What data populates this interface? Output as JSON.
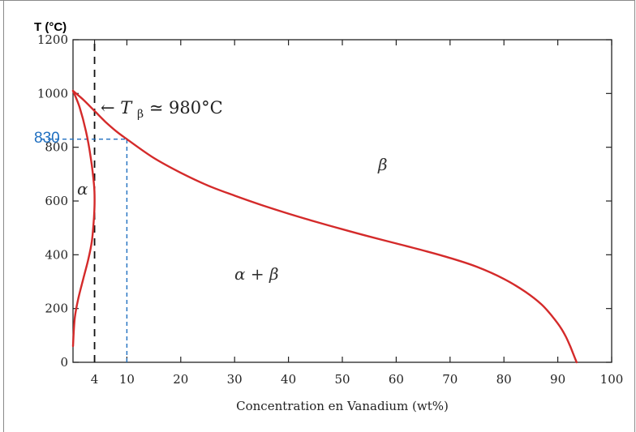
{
  "chart_data": {
    "type": "line",
    "ylabel": "T (°C)",
    "xlabel": "Concentration en Vanadium (wt%)",
    "xlim": [
      0,
      100
    ],
    "ylim": [
      0,
      1200
    ],
    "x_ticks": [
      {
        "value": 4,
        "label": "4"
      },
      {
        "value": 10,
        "label": "10"
      },
      {
        "value": 20,
        "label": "20"
      },
      {
        "value": 30,
        "label": "30"
      },
      {
        "value": 40,
        "label": "40"
      },
      {
        "value": 50,
        "label": "50"
      },
      {
        "value": 60,
        "label": "60"
      },
      {
        "value": 70,
        "label": "70"
      },
      {
        "value": 80,
        "label": "80"
      },
      {
        "value": 90,
        "label": "90"
      },
      {
        "value": 100,
        "label": "100"
      }
    ],
    "y_ticks": [
      {
        "value": 0,
        "label": "0"
      },
      {
        "value": 200,
        "label": "200"
      },
      {
        "value": 400,
        "label": "400"
      },
      {
        "value": 600,
        "label": "600"
      },
      {
        "value": 800,
        "label": "800"
      },
      {
        "value": 1000,
        "label": "1000"
      },
      {
        "value": 1200,
        "label": "1200"
      }
    ],
    "series": [
      {
        "color": "#d42a2a",
        "x": [
          0,
          2,
          4,
          6,
          8,
          10,
          15,
          20,
          25,
          30,
          35,
          40,
          45,
          50,
          55,
          60,
          65,
          70,
          75,
          80,
          84,
          87,
          89,
          90.5,
          91.5,
          92.3,
          92.8,
          93.2,
          93.5
        ],
        "y": [
          1010,
          975,
          935,
          895,
          860,
          830,
          760,
          705,
          658,
          620,
          585,
          553,
          523,
          495,
          468,
          442,
          416,
          388,
          355,
          310,
          262,
          215,
          170,
          130,
          95,
          60,
          35,
          15,
          0
        ]
      },
      {
        "color": "#d42a2a",
        "x": [
          0,
          1.2,
          2.4,
          3.3,
          3.9,
          4.0,
          3.9,
          3.5,
          2.8,
          1.9,
          0.9,
          0.3,
          0
        ],
        "y": [
          1010,
          950,
          860,
          760,
          660,
          600,
          540,
          450,
          380,
          310,
          230,
          160,
          60
        ]
      }
    ],
    "reference_lines": [
      {
        "orientation": "vertical",
        "x": 4,
        "style": "dashed",
        "color": "#111111"
      },
      {
        "orientation": "vertical",
        "x": 10,
        "y_from": 0,
        "y_to": 830,
        "style": "dashed",
        "color": "#1f6fc0"
      },
      {
        "orientation": "horizontal",
        "y": 830,
        "x_from": 0,
        "x_to": 10,
        "style": "dashed",
        "color": "#1f6fc0"
      }
    ],
    "annotations": {
      "t830": "830",
      "tbeta_prefix": "←",
      "tbeta_T": "T",
      "tbeta_sub": "β",
      "tbeta_rest": " ≃ 980°C",
      "region_alpha": "α",
      "region_beta": "β",
      "region_alpha_beta": "α + β"
    },
    "grid": false
  }
}
